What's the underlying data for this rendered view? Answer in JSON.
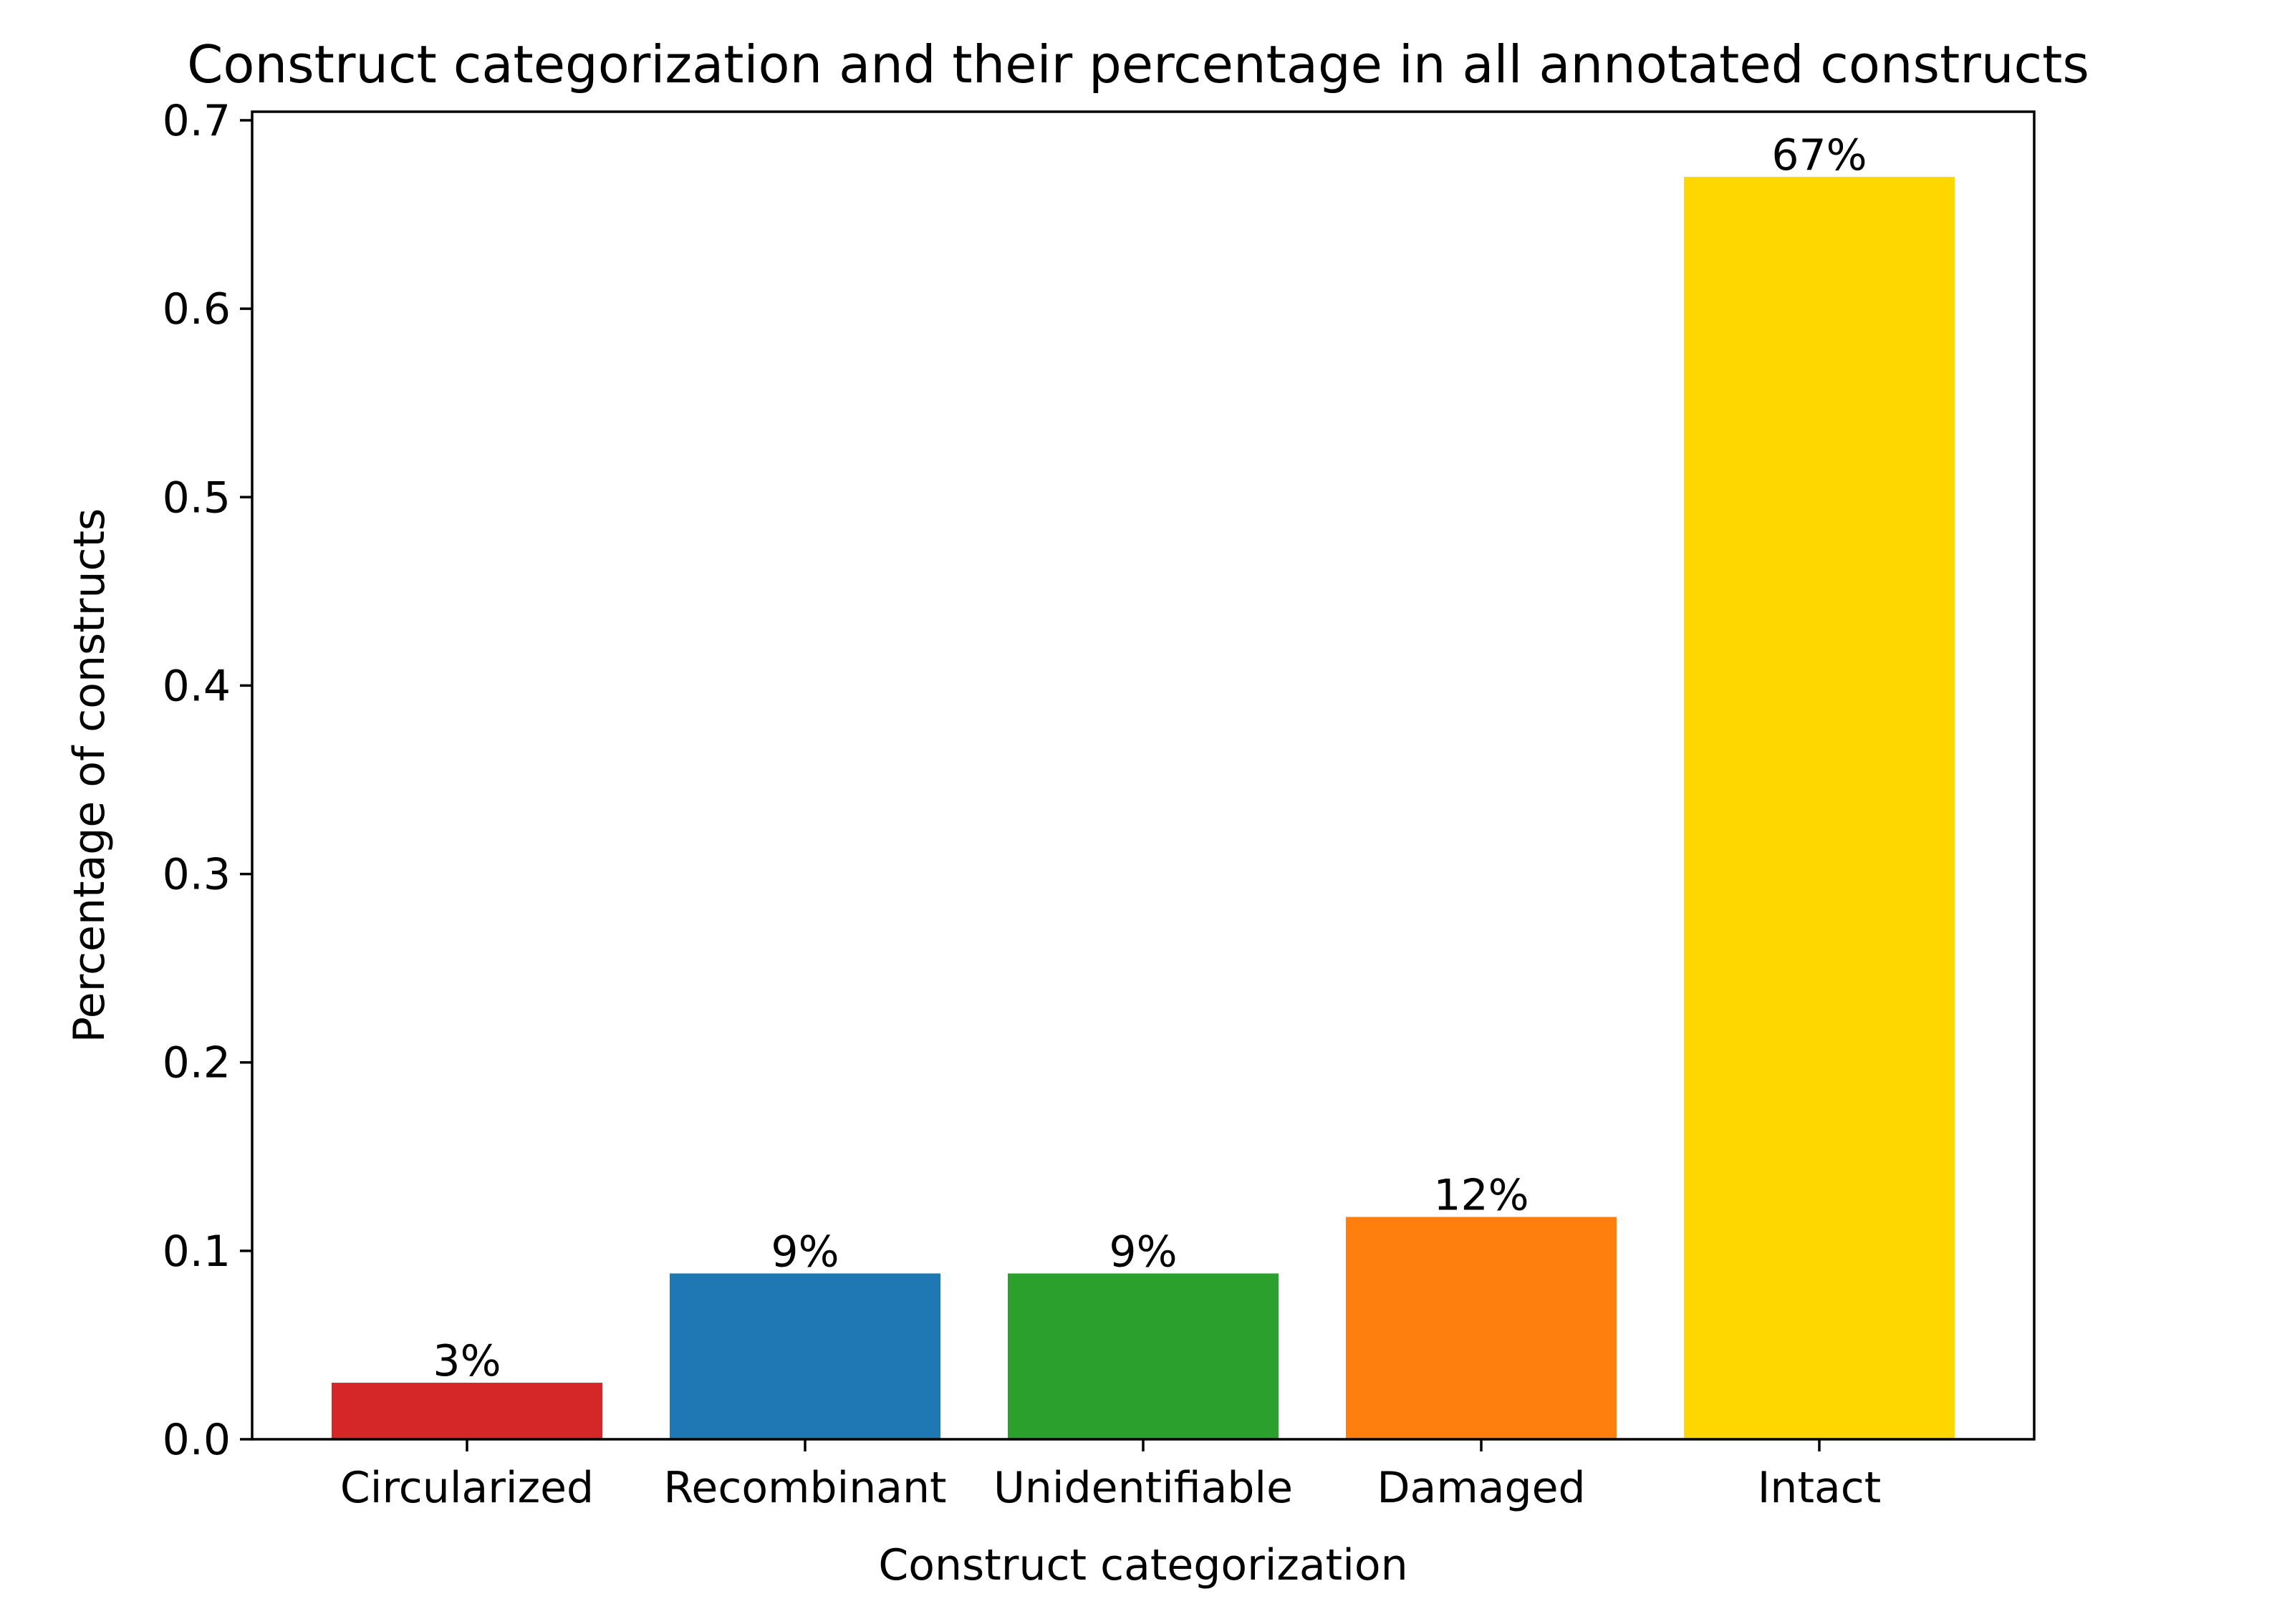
{
  "chart_data": {
    "type": "bar",
    "title": "Construct categorization and their percentage in all annotated constructs",
    "xlabel": "Construct categorization",
    "ylabel": "Percentage of constructs",
    "categories": [
      "Circularized",
      "Recombinant",
      "Unidentifiable",
      "Damaged",
      "Intact"
    ],
    "values": [
      0.03,
      0.088,
      0.088,
      0.118,
      0.67
    ],
    "data_labels": [
      "3%",
      "9%",
      "9%",
      "12%",
      "67%"
    ],
    "colors": [
      "#d62728",
      "#1f77b4",
      "#2ca02c",
      "#ff7f0e",
      "#ffd700"
    ],
    "ylim": [
      0,
      0.7
    ],
    "yticks": [
      0.0,
      0.1,
      0.2,
      0.3,
      0.4,
      0.5,
      0.6,
      0.7
    ],
    "ytick_labels": [
      "0.0",
      "0.1",
      "0.2",
      "0.3",
      "0.4",
      "0.5",
      "0.6",
      "0.7"
    ],
    "grid": false,
    "legend": "none"
  }
}
